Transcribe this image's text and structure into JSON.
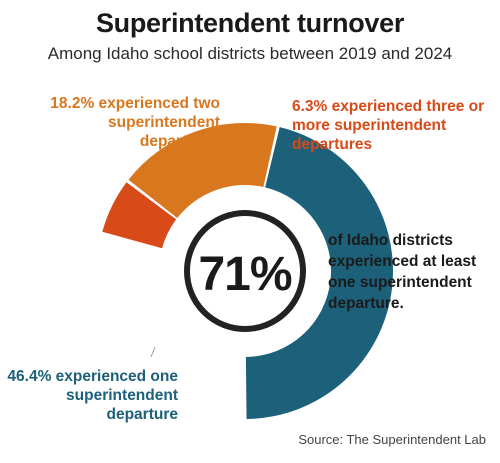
{
  "title": "Superintendent turnover",
  "subtitle": "Among Idaho school districts between 2019 and 2024",
  "center_value": "71%",
  "side_text": "of Idaho districts experienced at least one superintendent departure.",
  "source": "Source: The Superintendent Lab",
  "labels": {
    "one": "46.4% experienced one superintendent departure",
    "two": "18.2% experienced two superintendent departures",
    "three": "6.3% experienced three or more superintendent departures"
  },
  "colors": {
    "one": "#1c6079",
    "two": "#d9771f",
    "three": "#d84a17",
    "ring": "#222222"
  },
  "chart_data": {
    "type": "pie",
    "categories": [
      "one superintendent departure",
      "two superintendent departures",
      "three or more superintendent departures"
    ],
    "values": [
      46.4,
      18.2,
      6.3
    ],
    "center_value": "71%"
  }
}
